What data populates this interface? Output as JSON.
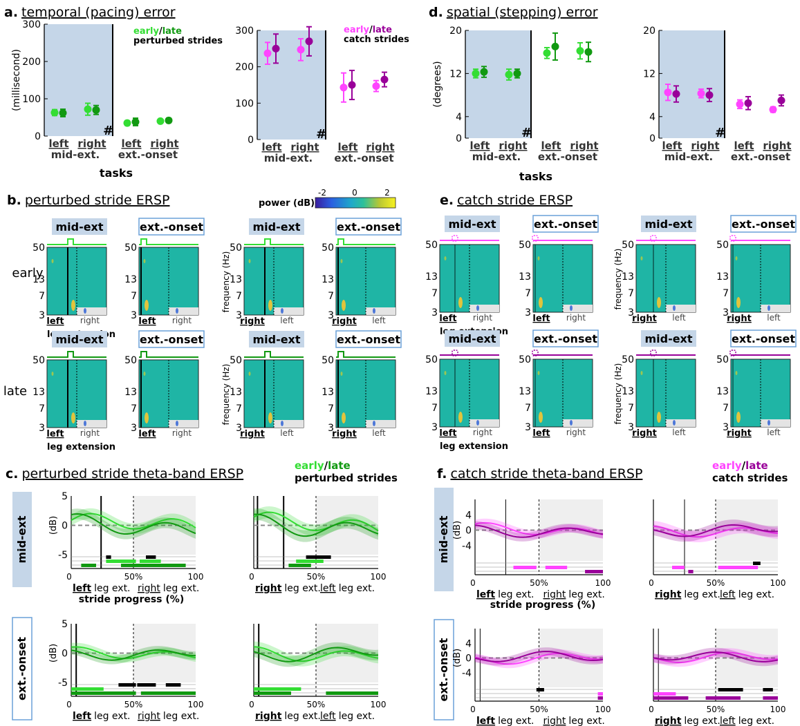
{
  "panel_a": {
    "letter": "a.",
    "title": "temporal (pacing) error",
    "ylabel": "(millisecond)",
    "xgroup_label": "tasks",
    "legend_early": "early",
    "legend_slash": "/",
    "legend_late": "late",
    "legend_perturbed": "perturbed strides",
    "legend_catch": "catch strides",
    "hash": "#"
  },
  "panel_b": {
    "letter": "b.",
    "title": "perturbed stride ERSP"
  },
  "panel_c": {
    "letter": "c.",
    "title": "perturbed stride theta-band ERSP",
    "legend_early": "early",
    "legend_slash": "/",
    "legend_late": "late",
    "legend_sub": "perturbed strides",
    "xlabel": "stride progress (%)"
  },
  "panel_d": {
    "letter": "d.",
    "title": "spatial (stepping) error",
    "ylabel": "(degrees)",
    "xgroup_label": "tasks",
    "hash": "#"
  },
  "panel_e": {
    "letter": "e.",
    "title": "catch stride ERSP"
  },
  "panel_f": {
    "letter": "f.",
    "title": "catch stride theta-band ERSP",
    "legend_early": "early",
    "legend_slash": "/",
    "legend_late": "late",
    "legend_sub": "catch strides",
    "xlabel": "stride progress (%)"
  },
  "colorbar": {
    "label": "power (dB)",
    "ticks": [
      "-2",
      "0",
      "2"
    ]
  },
  "labels": {
    "left": "left",
    "right": "right",
    "mid_ext_dot": "mid-ext.",
    "ext_onset": "ext.-onset",
    "mid_ext": "mid-ext",
    "leg_extension": "leg extension",
    "leg_ext": "leg ext.",
    "early": "early",
    "late": "late",
    "frequency_hz": "frequency (Hz)",
    "db": "(dB)",
    "pct50": "50%"
  },
  "colors": {
    "early_green": "#33dd33",
    "late_green": "#119911",
    "early_magenta": "#ff44ff",
    "late_magenta": "#990099",
    "shade_blue": "#c5d6e8",
    "ersp_bg": "#1fb5a5"
  },
  "chart_data": [
    {
      "type": "scatter",
      "id": "a-perturbed",
      "ylabel": "(millisecond)",
      "ylim": [
        0,
        300
      ],
      "yticks": [
        0,
        100,
        200,
        300
      ],
      "categories": [
        "left mid-ext.",
        "right mid-ext.",
        "left ext.-onset",
        "right ext.-onset"
      ],
      "series": [
        {
          "name": "early",
          "values": [
            63,
            72,
            35,
            40
          ],
          "err": [
            8,
            16,
            6,
            5
          ]
        },
        {
          "name": "late",
          "values": [
            62,
            70,
            38,
            42
          ],
          "err": [
            10,
            12,
            10,
            6
          ]
        }
      ]
    },
    {
      "type": "scatter",
      "id": "a-catch",
      "ylim": [
        0,
        300
      ],
      "yticks": [
        0,
        100,
        200,
        300
      ],
      "categories": [
        "left mid-ext.",
        "right mid-ext.",
        "left ext.-onset",
        "right ext.-onset"
      ],
      "series": [
        {
          "name": "early",
          "values": [
            237,
            247,
            143,
            147
          ],
          "err": [
            30,
            30,
            40,
            15
          ]
        },
        {
          "name": "late",
          "values": [
            250,
            270,
            150,
            165
          ],
          "err": [
            40,
            40,
            40,
            20
          ]
        }
      ]
    },
    {
      "type": "scatter",
      "id": "d-perturbed",
      "ylabel": "(degrees)",
      "ylim": [
        0,
        20
      ],
      "yticks": [
        0,
        4,
        12,
        20
      ],
      "categories": [
        "left mid-ext.",
        "right mid-ext.",
        "left ext.-onset",
        "right ext.-onset"
      ],
      "series": [
        {
          "name": "early",
          "values": [
            12.0,
            11.8,
            15.8,
            16.2
          ],
          "err": [
            0.8,
            1.0,
            1.0,
            1.5
          ]
        },
        {
          "name": "late",
          "values": [
            12.3,
            12.0,
            17.0,
            16.0
          ],
          "err": [
            1.0,
            0.8,
            2.5,
            1.8
          ]
        }
      ]
    },
    {
      "type": "scatter",
      "id": "d-catch",
      "ylim": [
        0,
        20
      ],
      "yticks": [
        0,
        4,
        12,
        20
      ],
      "categories": [
        "left mid-ext.",
        "right mid-ext.",
        "left ext.-onset",
        "right ext.-onset"
      ],
      "series": [
        {
          "name": "early",
          "values": [
            8.5,
            8.3,
            6.3,
            5.3
          ],
          "err": [
            1.5,
            0.8,
            0.8,
            0.5
          ]
        },
        {
          "name": "late",
          "values": [
            8.2,
            8.0,
            6.5,
            7.0
          ],
          "err": [
            1.5,
            1.2,
            1.2,
            1.0
          ]
        }
      ]
    },
    {
      "type": "line",
      "id": "c-theta",
      "xlabel": "stride progress (%)",
      "ylabel": "(dB)",
      "xlim": [
        0,
        100
      ],
      "xticks": [
        0,
        50,
        100
      ],
      "ylim": [
        -5,
        5
      ],
      "yticks": [
        -5,
        0,
        5
      ]
    },
    {
      "type": "line",
      "id": "f-theta",
      "xlabel": "stride progress (%)",
      "ylabel": "(dB)",
      "xlim": [
        0,
        100
      ],
      "xticks": [
        0,
        50,
        100
      ],
      "ylim": [
        -8,
        8
      ],
      "yticks": [
        -4,
        0,
        4
      ]
    },
    {
      "type": "heatmap",
      "id": "ersp",
      "ylabel": "frequency (Hz)",
      "yticks": [
        3,
        7,
        13,
        50
      ],
      "colorbar": {
        "label": "power (dB)",
        "range": [
          -2,
          2
        ]
      }
    }
  ]
}
